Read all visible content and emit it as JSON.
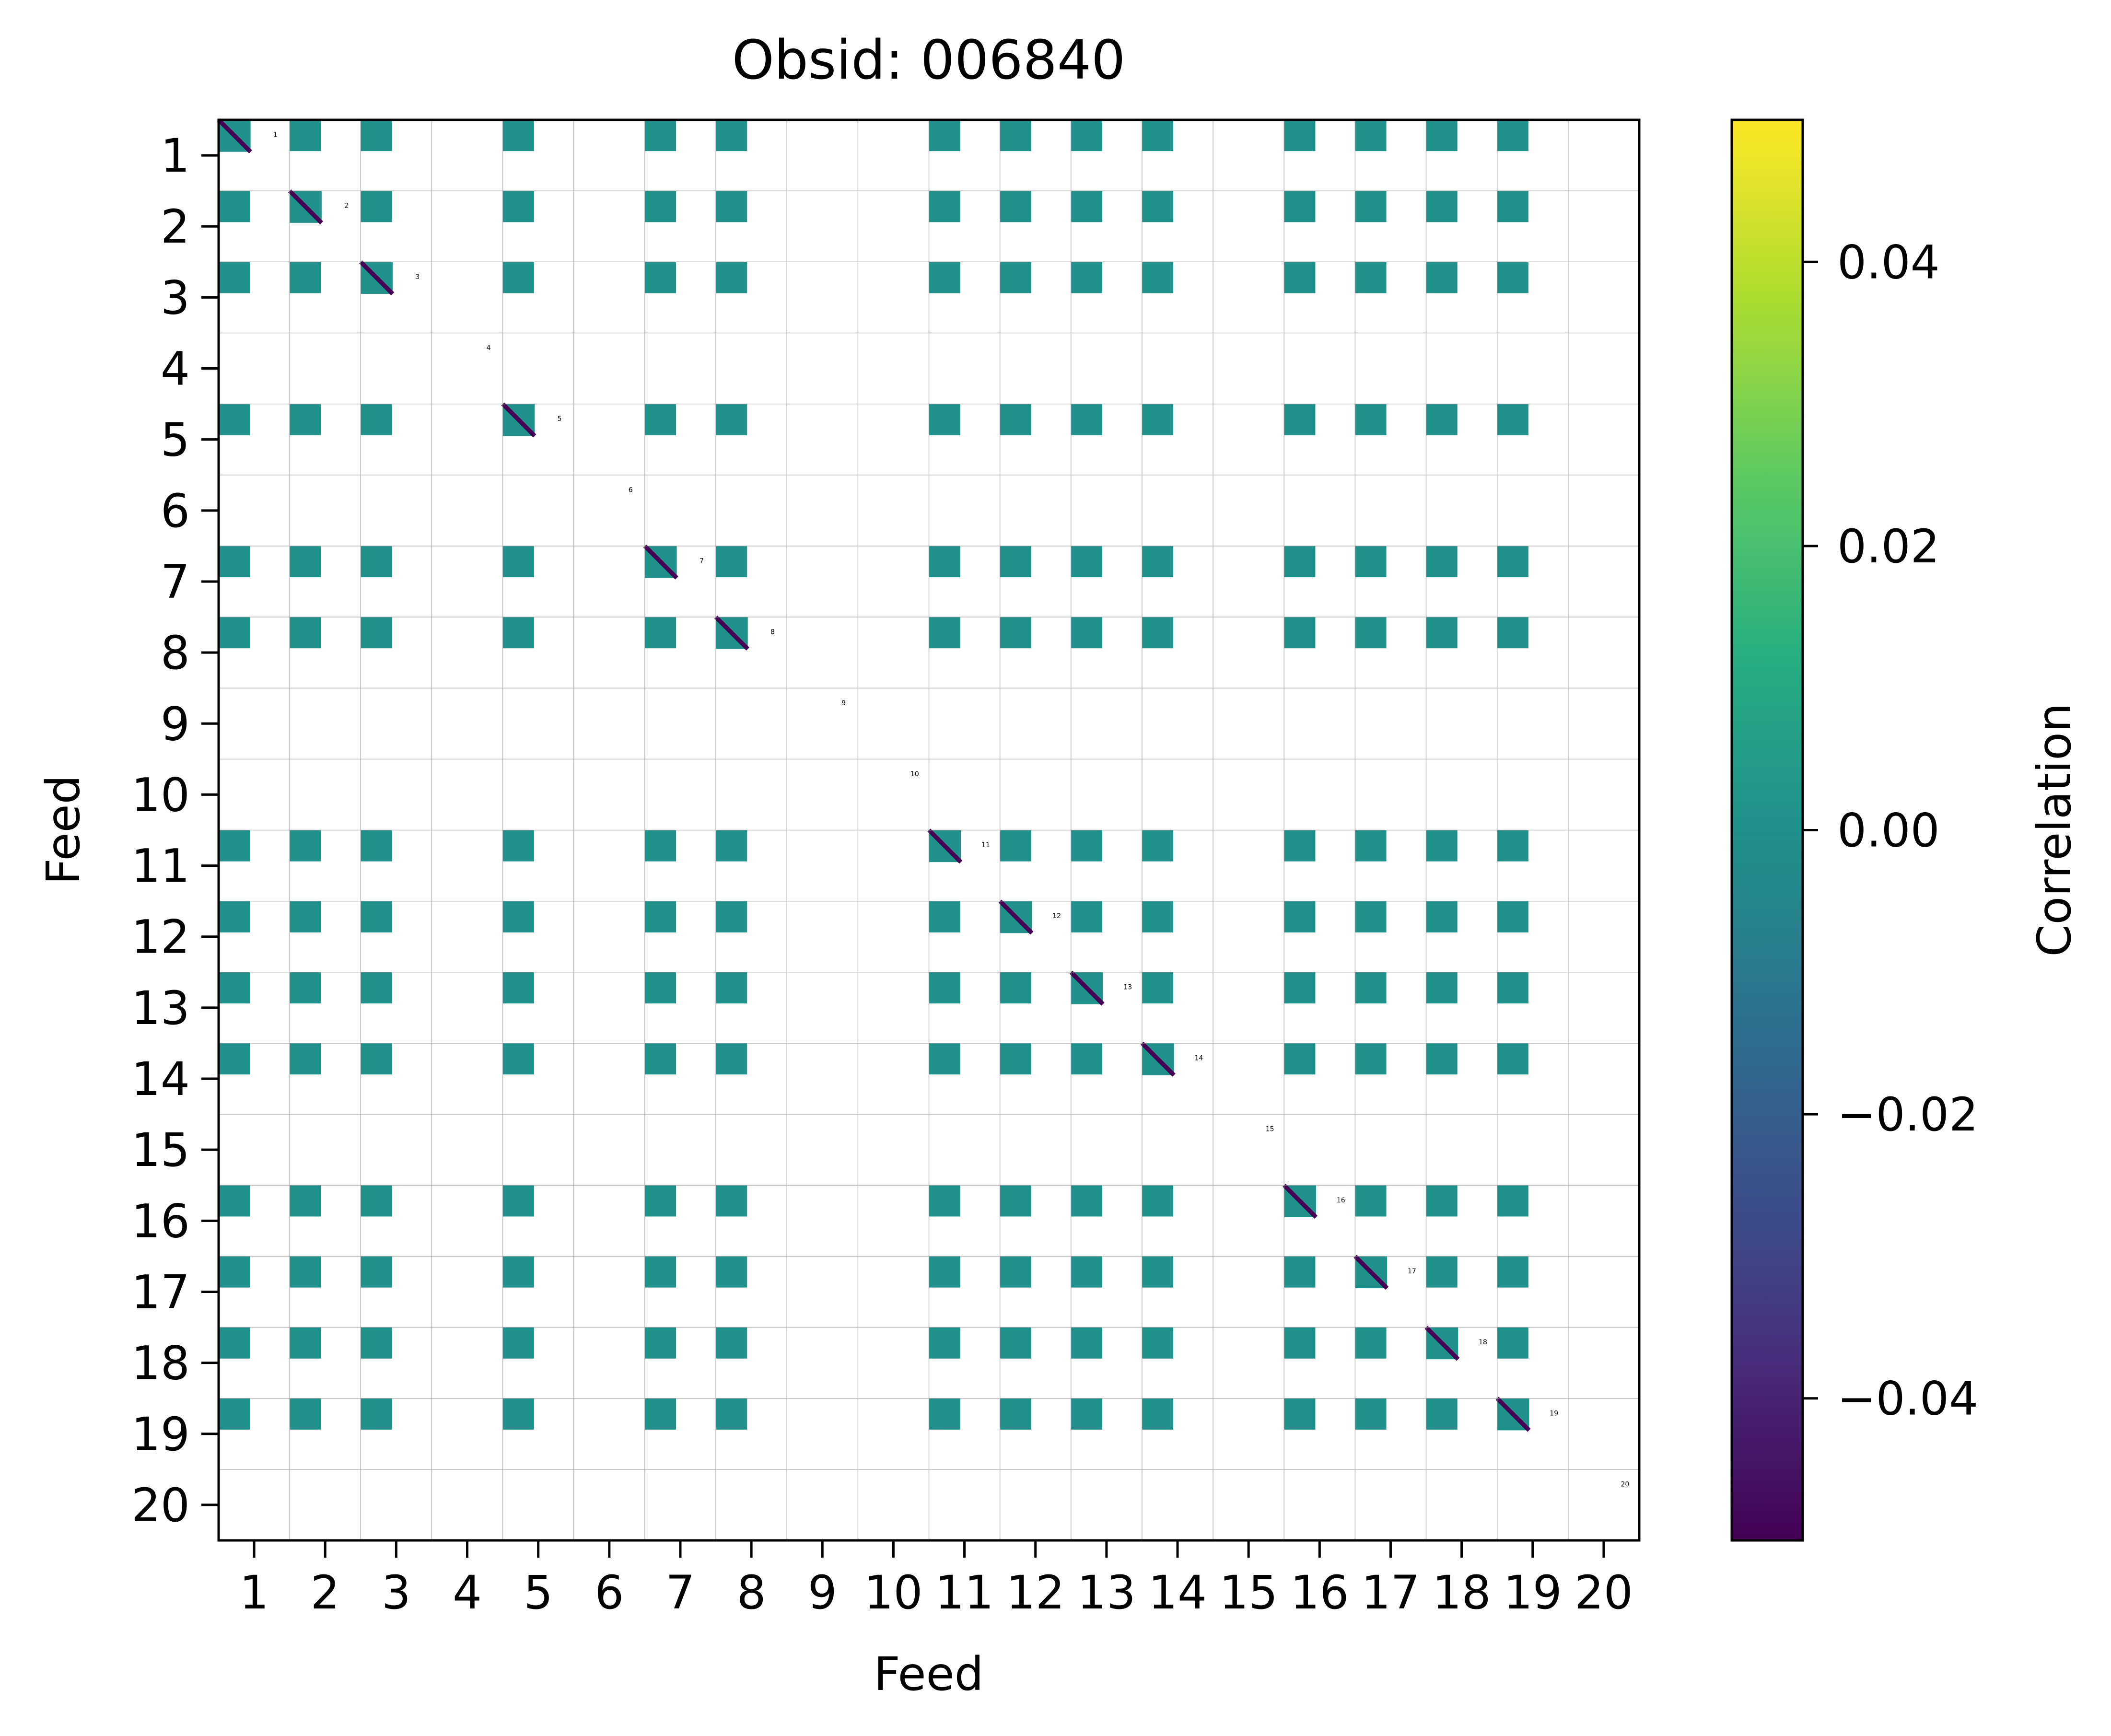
{
  "chart_data": {
    "type": "heatmap",
    "title": "Obsid: 006840",
    "xlabel": "Feed",
    "ylabel": "Feed",
    "x_ticks": [
      "1",
      "2",
      "3",
      "4",
      "5",
      "6",
      "7",
      "8",
      "9",
      "10",
      "11",
      "12",
      "13",
      "14",
      "15",
      "16",
      "17",
      "18",
      "19",
      "20"
    ],
    "y_ticks": [
      "1",
      "2",
      "3",
      "4",
      "5",
      "6",
      "7",
      "8",
      "9",
      "10",
      "11",
      "12",
      "13",
      "14",
      "15",
      "16",
      "17",
      "18",
      "19",
      "20"
    ],
    "feeds": [
      "1",
      "2",
      "3",
      "4",
      "5",
      "6",
      "7",
      "8",
      "9",
      "10",
      "11",
      "12",
      "13",
      "14",
      "15",
      "16",
      "17",
      "18",
      "19",
      "20"
    ],
    "grid": true,
    "colorbar": {
      "label": "Correlation",
      "range": [
        -0.05,
        0.05
      ],
      "ticks": [
        "0.04",
        "0.02",
        "0.00",
        "−0.02",
        "−0.04"
      ],
      "tick_values": [
        0.04,
        0.02,
        0.0,
        -0.02,
        -0.04
      ],
      "colormap": "viridis"
    },
    "active_feeds": [
      1,
      2,
      3,
      5,
      7,
      8,
      11,
      12,
      13,
      14,
      16,
      17,
      18,
      19
    ],
    "offdiagonal_correlation": 0.0,
    "diagonal_correlation": -0.05,
    "colors": {
      "offdiagonal": "#21918c",
      "diagonal": "#440154"
    }
  }
}
